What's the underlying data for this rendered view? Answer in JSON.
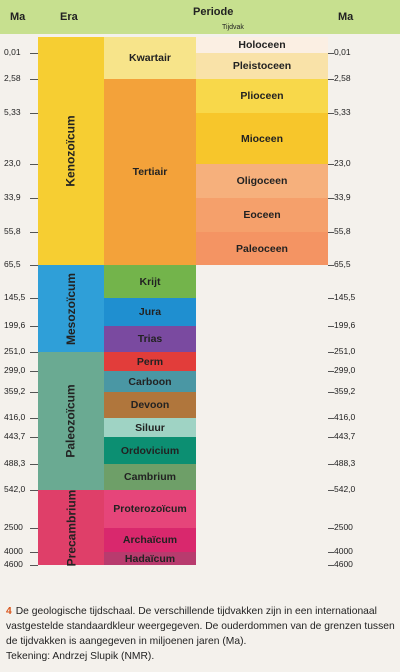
{
  "header": {
    "ma_left": "Ma",
    "era": "Era",
    "periode": "Periode",
    "tijdvak": "Tijdvak",
    "ma_right": "Ma"
  },
  "boundaries": [
    "0,01",
    "2,58",
    "5,33",
    "23,0",
    "33,9",
    "55,8",
    "65,5",
    "145,5",
    "199,6",
    "251,0",
    "299,0",
    "359,2",
    "416,0",
    "443,7",
    "488,3",
    "542,0",
    "2500",
    "4000",
    "4600"
  ],
  "eras": [
    {
      "name": "Kenozoïcum",
      "color": "#f6ce32",
      "from": -1,
      "to": 6
    },
    {
      "name": "Mesozoïcum",
      "color": "#2f9fd8",
      "from": 6,
      "to": 9
    },
    {
      "name": "Paleozoïcum",
      "color": "#6aaa92",
      "from": 9,
      "to": 15
    },
    {
      "name": "Precambrium",
      "color": "#df3f69",
      "from": 15,
      "to": 18
    }
  ],
  "periods": [
    {
      "name": "Kwartair",
      "color": "#f7e48a",
      "from": -1,
      "to": 1
    },
    {
      "name": "Tertiair",
      "color": "#f3a23a",
      "from": 1,
      "to": 6
    },
    {
      "name": "Krijt",
      "color": "#73b44b",
      "from": 6,
      "to": 7
    },
    {
      "name": "Jura",
      "color": "#1f8fd0",
      "from": 7,
      "to": 8
    },
    {
      "name": "Trias",
      "color": "#7a4aa0",
      "from": 8,
      "to": 9
    },
    {
      "name": "Perm",
      "color": "#e23d3a",
      "from": 9,
      "to": 10
    },
    {
      "name": "Carboon",
      "color": "#4a97a4",
      "from": 10,
      "to": 11
    },
    {
      "name": "Devoon",
      "color": "#b0763c",
      "from": 11,
      "to": 12
    },
    {
      "name": "Siluur",
      "color": "#9fd3c4",
      "from": 12,
      "to": 13
    },
    {
      "name": "Ordovicium",
      "color": "#0c8f72",
      "from": 13,
      "to": 14
    },
    {
      "name": "Cambrium",
      "color": "#6e9f68",
      "from": 14,
      "to": 15
    },
    {
      "name": "Proterozoïcum",
      "color": "#e6457a",
      "from": 15,
      "to": 16
    },
    {
      "name": "Archaïcum",
      "color": "#d9286d",
      "from": 16,
      "to": 17
    },
    {
      "name": "Hadaïcum",
      "color": "#b83b6e",
      "from": 17,
      "to": 18
    }
  ],
  "epochs": [
    {
      "name": "Holoceen",
      "color": "#fbefe3",
      "from": -1,
      "to": 0
    },
    {
      "name": "Pleistoceen",
      "color": "#f9e2a8",
      "from": 0,
      "to": 1
    },
    {
      "name": "Plioceen",
      "color": "#f8d84a",
      "from": 1,
      "to": 2
    },
    {
      "name": "Mioceen",
      "color": "#f7c62b",
      "from": 2,
      "to": 3
    },
    {
      "name": "Oligoceen",
      "color": "#f6b07c",
      "from": 3,
      "to": 4
    },
    {
      "name": "Eoceen",
      "color": "#f5a06b",
      "from": 4,
      "to": 5
    },
    {
      "name": "Paleoceen",
      "color": "#f49463",
      "from": 5,
      "to": 6
    }
  ],
  "caption": {
    "number": "4",
    "text": "De geologische tijdschaal. De verschillende tijdvakken zijn in een internationaal vastgestelde standaardkleur weergegeven. De ouderdommen van de grenzen tussen de tijdvakken is aangegeven in miljoenen jaren (Ma).",
    "credit": "Tekening: Andrzej Slupik (NMR)."
  }
}
